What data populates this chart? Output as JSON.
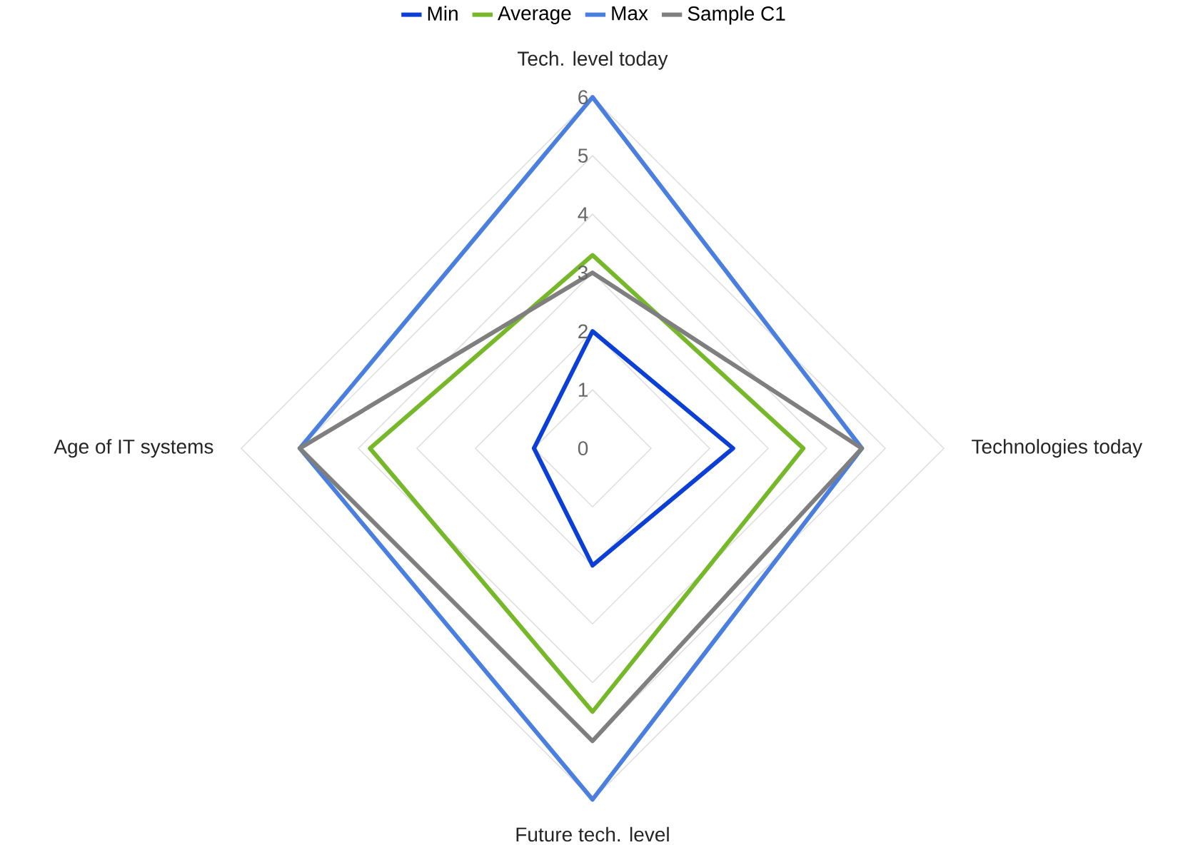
{
  "chart_data": {
    "type": "radar",
    "categories": [
      "Tech. level today",
      "Technologies today",
      "Future tech. level",
      "Age of IT systems"
    ],
    "series": [
      {
        "name": "Min",
        "color": "#0b3fd6",
        "values": [
          2,
          2.4,
          2,
          1
        ]
      },
      {
        "name": "Average",
        "color": "#76b82a",
        "values": [
          3.3,
          3.6,
          4.5,
          3.8
        ]
      },
      {
        "name": "Max",
        "color": "#4a7fe0",
        "values": [
          6,
          4.6,
          6,
          5
        ]
      },
      {
        "name": "Sample C1",
        "color": "#7f7f7f",
        "values": [
          3,
          4.6,
          5,
          5
        ]
      }
    ],
    "ylim": [
      0,
      6
    ],
    "yticks": [
      0,
      1,
      2,
      3,
      4,
      5,
      6
    ],
    "grid": true,
    "legend": "top"
  }
}
